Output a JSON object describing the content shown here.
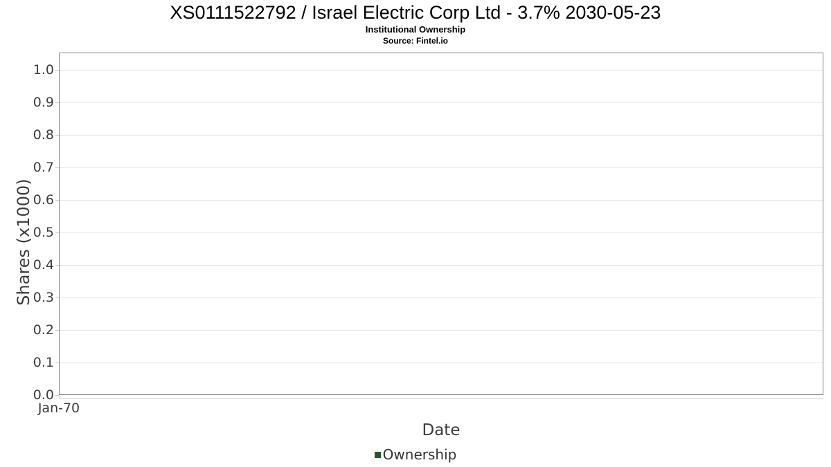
{
  "chart_data": {
    "type": "line",
    "title": "XS0111522792 / Israel Electric Corp Ltd - 3.7% 2030-05-23",
    "subtitle": "Institutional Ownership",
    "source": "Source: Fintel.io",
    "xlabel": "Date",
    "ylabel": "Shares (x1000)",
    "yticks": [
      "0.0",
      "0.1",
      "0.2",
      "0.3",
      "0.4",
      "0.5",
      "0.6",
      "0.7",
      "0.8",
      "0.9",
      "1.0"
    ],
    "ylim": [
      0.0,
      1.05
    ],
    "xticks": [
      "Jan-70"
    ],
    "grid": true,
    "legend": {
      "position": "bottom",
      "entries": [
        {
          "label": "Ownership",
          "color": "#28552d"
        }
      ]
    },
    "series": [
      {
        "name": "Ownership",
        "x": [],
        "y": []
      }
    ]
  },
  "colors": {
    "series_green": "#28552d",
    "plot_border": "#7f7f7f",
    "gridline": "#e7e7e7",
    "tick": "#c9c9c9",
    "axis_text": "#3c3c3c",
    "title_text": "#000000"
  }
}
